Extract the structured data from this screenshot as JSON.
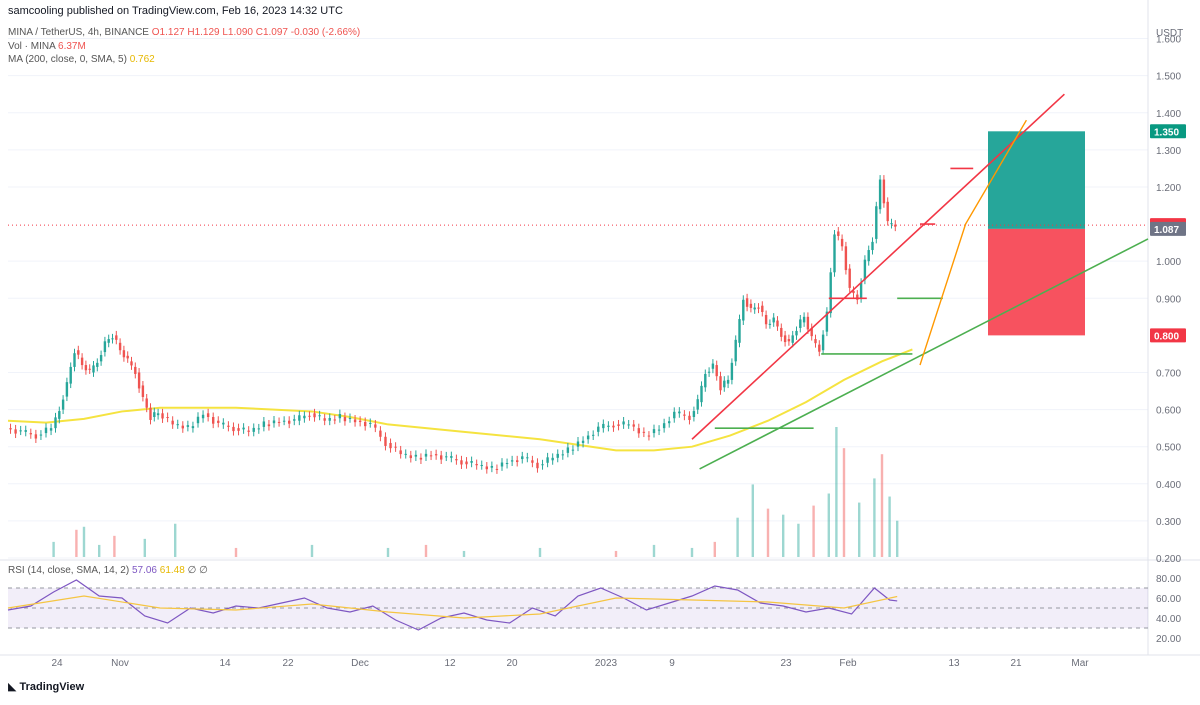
{
  "header": {
    "published": "samcooling published on TradingView.com, Feb 16, 2023 14:32 UTC"
  },
  "legend": {
    "symbol": "MINA / TetherUS, 4h, BINANCE",
    "ohlc": "O1.127 H1.129 L1.090 C1.097 -0.030 (-2.66%)",
    "vol_label": "Vol · MINA",
    "vol_value": "6.37M",
    "ma_label": "MA (200, close, 0, SMA, 5)",
    "ma_value": "0.762",
    "rsi_label": "RSI (14, close, SMA, 14, 2)",
    "rsi_value": "57.06",
    "rsi_ma_value": "61.48",
    "rsi_extra": "∅ ∅"
  },
  "footer": {
    "logo": "TradingView"
  },
  "chart_data": {
    "type": "candlestick",
    "currency_label": "USDT",
    "price_axis": {
      "ticks": [
        1.6,
        1.5,
        1.4,
        1.3,
        1.2,
        1.0,
        0.9,
        0.7,
        0.6,
        0.5,
        0.4,
        0.3,
        0.2
      ],
      "tick_labels": [
        "1.600",
        "1.500",
        "1.400",
        "1.300",
        "1.200",
        "1.000",
        "0.900",
        "0.700",
        "0.600",
        "0.500",
        "0.400",
        "0.300",
        "0.200"
      ],
      "ylim": [
        0.2,
        1.65
      ]
    },
    "price_badges": [
      {
        "label": "1.350",
        "value": 1.35,
        "color": "#089981"
      },
      {
        "label": "1.097",
        "value": 1.097,
        "color": "#f23645"
      },
      {
        "label": "1.087",
        "value": 1.087,
        "color": "#6f7486"
      },
      {
        "label": "0.800",
        "value": 0.8,
        "color": "#f23645"
      }
    ],
    "current_price": 1.097,
    "x_axis_labels": [
      "24",
      "Nov",
      "14",
      "22",
      "Dec",
      "12",
      "20",
      "2023",
      "9",
      "23",
      "Feb",
      "13",
      "21",
      "Mar"
    ],
    "price_series": [
      {
        "day": 0,
        "price": 0.55
      },
      {
        "day": 2,
        "price": 0.54
      },
      {
        "day": 4,
        "price": 0.53
      },
      {
        "day": 6,
        "price": 0.55
      },
      {
        "day": 7,
        "price": 0.6
      },
      {
        "day": 8,
        "price": 0.67
      },
      {
        "day": 9,
        "price": 0.76
      },
      {
        "day": 10,
        "price": 0.72
      },
      {
        "day": 11,
        "price": 0.7
      },
      {
        "day": 12,
        "price": 0.73
      },
      {
        "day": 13,
        "price": 0.78
      },
      {
        "day": 14,
        "price": 0.8
      },
      {
        "day": 15,
        "price": 0.76
      },
      {
        "day": 16,
        "price": 0.73
      },
      {
        "day": 17,
        "price": 0.7
      },
      {
        "day": 18,
        "price": 0.63
      },
      {
        "day": 19,
        "price": 0.58
      },
      {
        "day": 20,
        "price": 0.59
      },
      {
        "day": 22,
        "price": 0.56
      },
      {
        "day": 24,
        "price": 0.55
      },
      {
        "day": 26,
        "price": 0.59
      },
      {
        "day": 28,
        "price": 0.56
      },
      {
        "day": 30,
        "price": 0.55
      },
      {
        "day": 32,
        "price": 0.54
      },
      {
        "day": 34,
        "price": 0.56
      },
      {
        "day": 36,
        "price": 0.57
      },
      {
        "day": 38,
        "price": 0.57
      },
      {
        "day": 40,
        "price": 0.59
      },
      {
        "day": 42,
        "price": 0.57
      },
      {
        "day": 44,
        "price": 0.58
      },
      {
        "day": 46,
        "price": 0.57
      },
      {
        "day": 48,
        "price": 0.56
      },
      {
        "day": 50,
        "price": 0.51
      },
      {
        "day": 52,
        "price": 0.48
      },
      {
        "day": 54,
        "price": 0.47
      },
      {
        "day": 56,
        "price": 0.48
      },
      {
        "day": 58,
        "price": 0.47
      },
      {
        "day": 60,
        "price": 0.46
      },
      {
        "day": 62,
        "price": 0.45
      },
      {
        "day": 64,
        "price": 0.44
      },
      {
        "day": 66,
        "price": 0.46
      },
      {
        "day": 68,
        "price": 0.47
      },
      {
        "day": 70,
        "price": 0.45
      },
      {
        "day": 72,
        "price": 0.47
      },
      {
        "day": 74,
        "price": 0.49
      },
      {
        "day": 76,
        "price": 0.52
      },
      {
        "day": 78,
        "price": 0.55
      },
      {
        "day": 80,
        "price": 0.56
      },
      {
        "day": 82,
        "price": 0.56
      },
      {
        "day": 84,
        "price": 0.53
      },
      {
        "day": 86,
        "price": 0.55
      },
      {
        "day": 88,
        "price": 0.59
      },
      {
        "day": 90,
        "price": 0.58
      },
      {
        "day": 91,
        "price": 0.62
      },
      {
        "day": 92,
        "price": 0.7
      },
      {
        "day": 93,
        "price": 0.72
      },
      {
        "day": 94,
        "price": 0.66
      },
      {
        "day": 95,
        "price": 0.68
      },
      {
        "day": 96,
        "price": 0.78
      },
      {
        "day": 97,
        "price": 0.9
      },
      {
        "day": 98,
        "price": 0.87
      },
      {
        "day": 99,
        "price": 0.88
      },
      {
        "day": 100,
        "price": 0.83
      },
      {
        "day": 101,
        "price": 0.84
      },
      {
        "day": 102,
        "price": 0.8
      },
      {
        "day": 103,
        "price": 0.78
      },
      {
        "day": 104,
        "price": 0.82
      },
      {
        "day": 105,
        "price": 0.85
      },
      {
        "day": 106,
        "price": 0.79
      },
      {
        "day": 107,
        "price": 0.76
      },
      {
        "day": 108,
        "price": 0.86
      },
      {
        "day": 109,
        "price": 1.08
      },
      {
        "day": 110,
        "price": 1.04
      },
      {
        "day": 111,
        "price": 0.92
      },
      {
        "day": 112,
        "price": 0.9
      },
      {
        "day": 113,
        "price": 1.0
      },
      {
        "day": 114,
        "price": 1.06
      },
      {
        "day": 115,
        "price": 1.22
      },
      {
        "day": 116,
        "price": 1.1
      },
      {
        "day": 117,
        "price": 1.097
      }
    ],
    "ma_series": [
      {
        "day": 0,
        "price": 0.57
      },
      {
        "day": 5,
        "price": 0.565
      },
      {
        "day": 10,
        "price": 0.575
      },
      {
        "day": 15,
        "price": 0.595
      },
      {
        "day": 20,
        "price": 0.605
      },
      {
        "day": 30,
        "price": 0.605
      },
      {
        "day": 40,
        "price": 0.595
      },
      {
        "day": 45,
        "price": 0.58
      },
      {
        "day": 50,
        "price": 0.56
      },
      {
        "day": 60,
        "price": 0.54
      },
      {
        "day": 70,
        "price": 0.52
      },
      {
        "day": 80,
        "price": 0.49
      },
      {
        "day": 85,
        "price": 0.49
      },
      {
        "day": 90,
        "price": 0.5
      },
      {
        "day": 95,
        "price": 0.53
      },
      {
        "day": 100,
        "price": 0.57
      },
      {
        "day": 105,
        "price": 0.62
      },
      {
        "day": 110,
        "price": 0.68
      },
      {
        "day": 115,
        "price": 0.73
      },
      {
        "day": 119,
        "price": 0.762
      }
    ],
    "drawings": {
      "upper_trendline": {
        "color": "#f23645",
        "from": {
          "day": 90,
          "price": 0.52
        },
        "to": {
          "day": 139,
          "price": 1.45
        }
      },
      "lower_trendline": {
        "color": "#4caf50",
        "from": {
          "day": 91,
          "price": 0.44
        },
        "to": {
          "day": 150,
          "price": 1.06
        }
      },
      "support_lines": [
        {
          "color": "#4caf50",
          "from_day": 93,
          "to_day": 106,
          "price": 0.55
        },
        {
          "color": "#4caf50",
          "from_day": 107,
          "to_day": 119,
          "price": 0.75
        },
        {
          "color": "#4caf50",
          "from_day": 117,
          "to_day": 123,
          "price": 0.9
        },
        {
          "color": "#f23645",
          "from_day": 108,
          "to_day": 113,
          "price": 0.9
        },
        {
          "color": "#f23645",
          "from_day": 120,
          "to_day": 122,
          "price": 1.1
        },
        {
          "color": "#f23645",
          "from_day": 124,
          "to_day": 127,
          "price": 1.25
        }
      ],
      "path_arrow": {
        "color": "#ff9800",
        "points": [
          {
            "day": 120,
            "price": 0.72
          },
          {
            "day": 126,
            "price": 1.1
          },
          {
            "day": 134,
            "price": 1.38
          }
        ]
      },
      "position": {
        "entry": 1.087,
        "target": 1.35,
        "stop": 0.8,
        "profit_color": "#26a69a",
        "loss_color": "#f7525f"
      }
    },
    "volume": {
      "label": "Vol · MINA",
      "last": "6.37M",
      "bars": [
        {
          "day": 6,
          "v": 0.5
        },
        {
          "day": 9,
          "v": 0.9
        },
        {
          "day": 10,
          "v": 1.0
        },
        {
          "day": 12,
          "v": 0.4
        },
        {
          "day": 14,
          "v": 0.7
        },
        {
          "day": 18,
          "v": 0.6
        },
        {
          "day": 22,
          "v": 1.1
        },
        {
          "day": 30,
          "v": 0.3
        },
        {
          "day": 40,
          "v": 0.4
        },
        {
          "day": 50,
          "v": 0.3
        },
        {
          "day": 55,
          "v": 0.4
        },
        {
          "day": 60,
          "v": 0.2
        },
        {
          "day": 70,
          "v": 0.3
        },
        {
          "day": 80,
          "v": 0.2
        },
        {
          "day": 85,
          "v": 0.4
        },
        {
          "day": 90,
          "v": 0.3
        },
        {
          "day": 93,
          "v": 0.5
        },
        {
          "day": 96,
          "v": 1.3
        },
        {
          "day": 98,
          "v": 2.4
        },
        {
          "day": 100,
          "v": 1.6
        },
        {
          "day": 102,
          "v": 1.4
        },
        {
          "day": 104,
          "v": 1.1
        },
        {
          "day": 106,
          "v": 1.7
        },
        {
          "day": 108,
          "v": 2.1
        },
        {
          "day": 109,
          "v": 4.3
        },
        {
          "day": 110,
          "v": 3.6
        },
        {
          "day": 112,
          "v": 1.8
        },
        {
          "day": 114,
          "v": 2.6
        },
        {
          "day": 115,
          "v": 3.4
        },
        {
          "day": 116,
          "v": 2.0
        },
        {
          "day": 117,
          "v": 1.2
        }
      ]
    },
    "rsi": {
      "label": "RSI (14, close, SMA, 14, 2)",
      "value": 57.06,
      "ma_value": 61.48,
      "ticks": [
        80,
        60,
        40,
        20
      ],
      "tick_labels": [
        "80.00",
        "60.00",
        "40.00",
        "20.00"
      ],
      "upper_band": 70,
      "lower_band": 30,
      "mid": 50,
      "series": [
        {
          "day": 0,
          "v": 48
        },
        {
          "day": 3,
          "v": 52
        },
        {
          "day": 6,
          "v": 66
        },
        {
          "day": 9,
          "v": 78
        },
        {
          "day": 12,
          "v": 62
        },
        {
          "day": 15,
          "v": 60
        },
        {
          "day": 18,
          "v": 42
        },
        {
          "day": 21,
          "v": 35
        },
        {
          "day": 24,
          "v": 50
        },
        {
          "day": 27,
          "v": 45
        },
        {
          "day": 30,
          "v": 52
        },
        {
          "day": 33,
          "v": 50
        },
        {
          "day": 36,
          "v": 55
        },
        {
          "day": 39,
          "v": 60
        },
        {
          "day": 42,
          "v": 50
        },
        {
          "day": 45,
          "v": 46
        },
        {
          "day": 48,
          "v": 52
        },
        {
          "day": 51,
          "v": 38
        },
        {
          "day": 54,
          "v": 28
        },
        {
          "day": 57,
          "v": 40
        },
        {
          "day": 60,
          "v": 45
        },
        {
          "day": 63,
          "v": 38
        },
        {
          "day": 66,
          "v": 35
        },
        {
          "day": 69,
          "v": 50
        },
        {
          "day": 72,
          "v": 42
        },
        {
          "day": 75,
          "v": 62
        },
        {
          "day": 78,
          "v": 70
        },
        {
          "day": 81,
          "v": 60
        },
        {
          "day": 84,
          "v": 48
        },
        {
          "day": 87,
          "v": 55
        },
        {
          "day": 90,
          "v": 62
        },
        {
          "day": 93,
          "v": 72
        },
        {
          "day": 96,
          "v": 68
        },
        {
          "day": 99,
          "v": 55
        },
        {
          "day": 102,
          "v": 52
        },
        {
          "day": 105,
          "v": 46
        },
        {
          "day": 108,
          "v": 50
        },
        {
          "day": 111,
          "v": 44
        },
        {
          "day": 114,
          "v": 70
        },
        {
          "day": 116,
          "v": 58
        },
        {
          "day": 117,
          "v": 57.06
        }
      ],
      "ma_series": [
        {
          "day": 0,
          "v": 50
        },
        {
          "day": 10,
          "v": 62
        },
        {
          "day": 20,
          "v": 50
        },
        {
          "day": 30,
          "v": 48
        },
        {
          "day": 40,
          "v": 54
        },
        {
          "day": 50,
          "v": 46
        },
        {
          "day": 60,
          "v": 40
        },
        {
          "day": 70,
          "v": 44
        },
        {
          "day": 80,
          "v": 60
        },
        {
          "day": 90,
          "v": 58
        },
        {
          "day": 100,
          "v": 56
        },
        {
          "day": 110,
          "v": 50
        },
        {
          "day": 117,
          "v": 61.48
        }
      ]
    }
  }
}
